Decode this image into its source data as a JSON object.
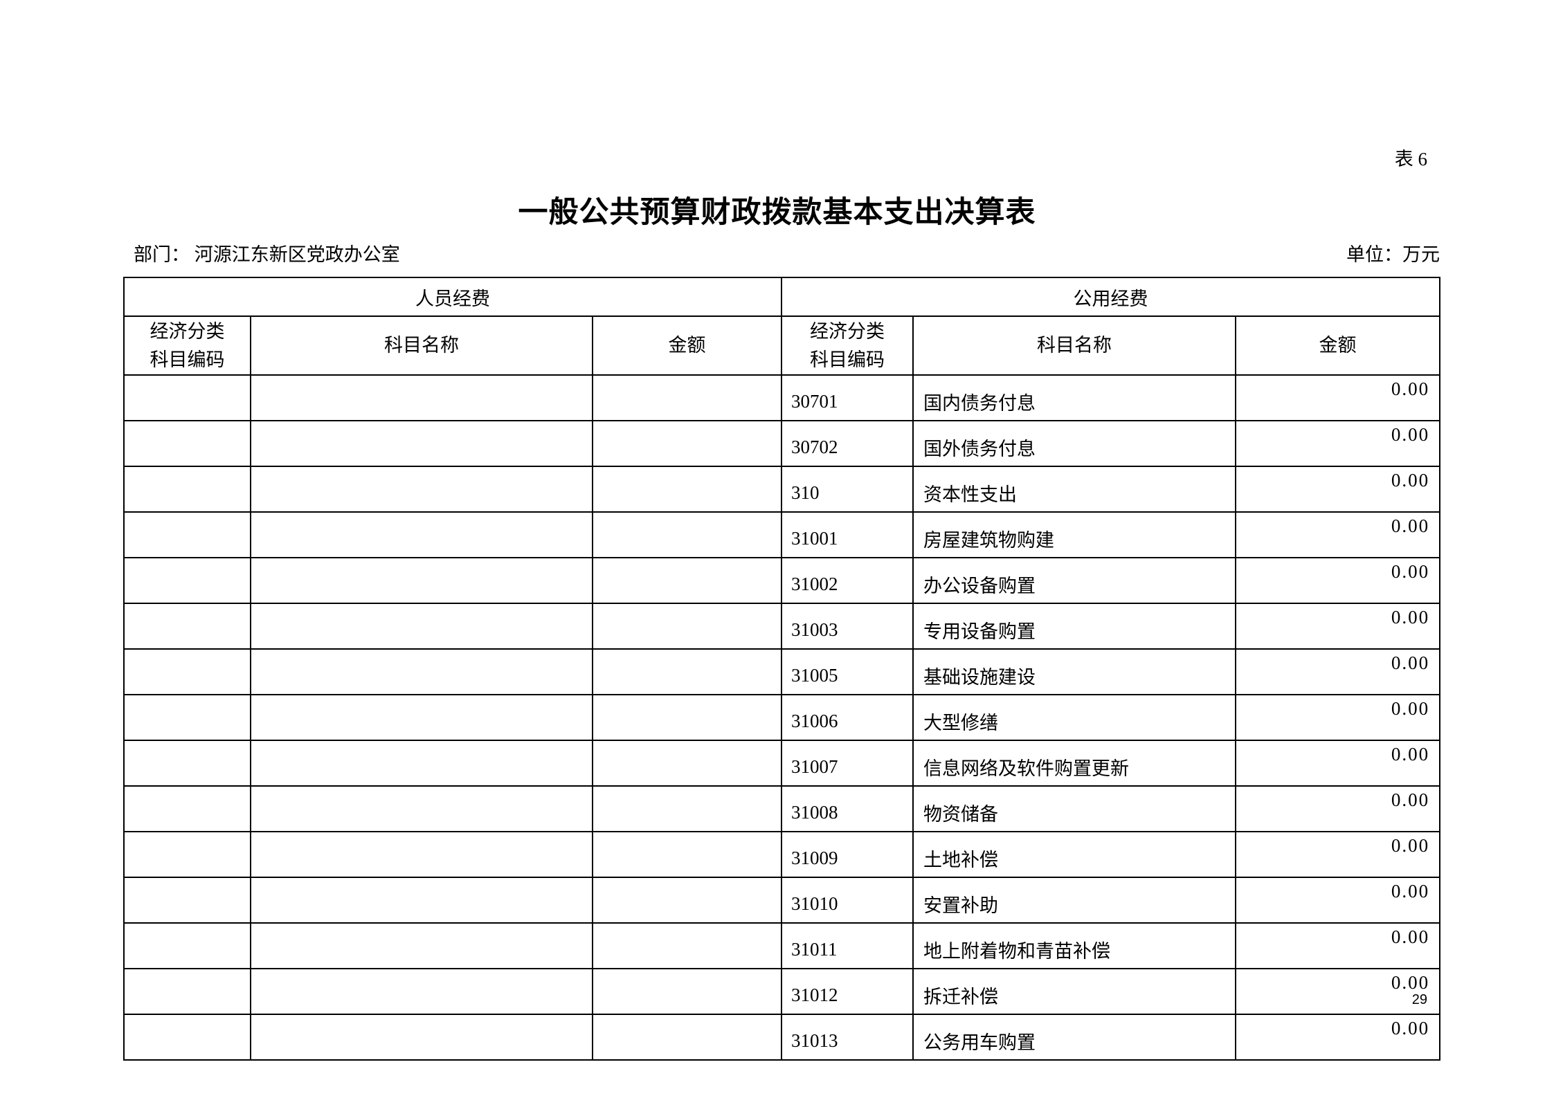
{
  "table_no": "表 6",
  "title": "一般公共预算财政拨款基本支出决算表",
  "department": "部门：  河源江东新区党政办公室",
  "unit": "单位：万元",
  "page_number": "29",
  "headers": {
    "personnel": "人员经费",
    "public": "公用经费",
    "code_line1": "经济分类",
    "code_line2": "科目编码",
    "name": "科目名称",
    "amount": "金额"
  },
  "rows": [
    {
      "code": "30701",
      "name": "国内债务付息",
      "amount": "0.00"
    },
    {
      "code": "30702",
      "name": "国外债务付息",
      "amount": "0.00"
    },
    {
      "code": "310",
      "name": "资本性支出",
      "amount": "0.00"
    },
    {
      "code": "31001",
      "name": "房屋建筑物购建",
      "amount": "0.00"
    },
    {
      "code": "31002",
      "name": "办公设备购置",
      "amount": "0.00"
    },
    {
      "code": "31003",
      "name": "专用设备购置",
      "amount": "0.00"
    },
    {
      "code": "31005",
      "name": "基础设施建设",
      "amount": "0.00"
    },
    {
      "code": "31006",
      "name": "大型修缮",
      "amount": "0.00"
    },
    {
      "code": "31007",
      "name": "信息网络及软件购置更新",
      "amount": "0.00"
    },
    {
      "code": "31008",
      "name": "物资储备",
      "amount": "0.00"
    },
    {
      "code": "31009",
      "name": "土地补偿",
      "amount": "0.00"
    },
    {
      "code": "31010",
      "name": "安置补助",
      "amount": "0.00"
    },
    {
      "code": "31011",
      "name": "地上附着物和青苗补偿",
      "amount": "0.00"
    },
    {
      "code": "31012",
      "name": "拆迁补偿",
      "amount": "0.00"
    },
    {
      "code": "31013",
      "name": "公务用车购置",
      "amount": "0.00"
    }
  ]
}
